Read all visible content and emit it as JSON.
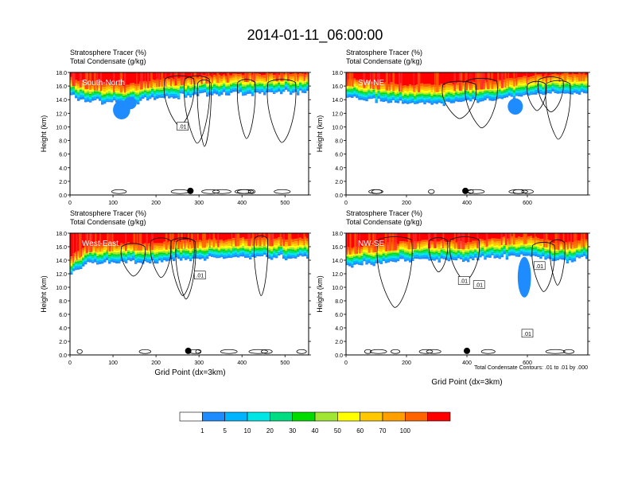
{
  "title": "2014-01-11_06:00:00",
  "panel_line1": "Stratosphere Tracer   (%)",
  "panel_line2": "Total Condensate   (g/kg)",
  "ylabel": "Height (km)",
  "xlabel": "Grid Point (dx=3km)",
  "contour_note": "Total Condensate Contours: .01 to .01 by .000",
  "contour_label": ".01",
  "y_ticks": [
    "0.0",
    "2.0",
    "4.0",
    "6.0",
    "8.0",
    "10.0",
    "12.0",
    "14.0",
    "16.0",
    "18.0"
  ],
  "colors": {
    "levels": [
      "#ffffff",
      "#1e8cff",
      "#00b4ff",
      "#00e6e6",
      "#00dc82",
      "#00dc00",
      "#a0e632",
      "#ffff00",
      "#ffc800",
      "#ffa000",
      "#ff6400",
      "#ff0000"
    ],
    "contour": "#000000",
    "label_text": "#ffffff"
  },
  "colorbar": {
    "labels": [
      "1",
      "5",
      "10",
      "20",
      "30",
      "40",
      "50",
      "60",
      "70",
      "100"
    ]
  },
  "chart_data": [
    {
      "type": "heatmap",
      "panel": "top-left",
      "label": "South-North",
      "xlim": [
        0,
        555
      ],
      "ylim": [
        0,
        18
      ],
      "x_ticks": [
        "0",
        "100",
        "200",
        "300",
        "400",
        "500"
      ],
      "marker_x": 280,
      "tracer_front_km": [
        [
          0,
          15.3
        ],
        [
          40,
          14.7
        ],
        [
          80,
          14.4
        ],
        [
          130,
          14.2
        ],
        [
          180,
          14.9
        ],
        [
          250,
          15.3
        ],
        [
          330,
          15.6
        ],
        [
          400,
          15.8
        ],
        [
          500,
          15.9
        ],
        [
          555,
          15.9
        ]
      ],
      "blue_patches": [
        [
          120,
          12.5,
          20,
          1.4
        ],
        [
          140,
          13.5,
          15,
          0.9
        ]
      ],
      "contour_labels": [
        [
          262,
          10.1
        ]
      ]
    },
    {
      "type": "heatmap",
      "panel": "top-right",
      "label": "SW-NE",
      "xlim": [
        0,
        800
      ],
      "ylim": [
        0,
        18
      ],
      "x_ticks": [
        "0",
        "200",
        "400",
        "600"
      ],
      "marker_x": 395,
      "tracer_front_km": [
        [
          0,
          15.2
        ],
        [
          100,
          14.7
        ],
        [
          200,
          14.3
        ],
        [
          300,
          14.3
        ],
        [
          400,
          14.6
        ],
        [
          500,
          14.8
        ],
        [
          600,
          15.5
        ],
        [
          700,
          15.8
        ],
        [
          800,
          15.9
        ]
      ],
      "blue_patches": [
        [
          560,
          13.0,
          25,
          1.2
        ]
      ],
      "contour_labels": []
    },
    {
      "type": "heatmap",
      "panel": "bottom-left",
      "label": "West-East",
      "xlim": [
        0,
        555
      ],
      "ylim": [
        0,
        18
      ],
      "x_ticks": [
        "0",
        "100",
        "200",
        "300",
        "400",
        "500"
      ],
      "marker_x": 275,
      "tracer_front_km": [
        [
          0,
          12.6
        ],
        [
          40,
          14.4
        ],
        [
          100,
          14.5
        ],
        [
          200,
          14.7
        ],
        [
          300,
          15.0
        ],
        [
          400,
          15.3
        ],
        [
          500,
          15.3
        ],
        [
          555,
          15.4
        ]
      ],
      "blue_patches": [],
      "contour_labels": [
        [
          302,
          11.8
        ]
      ]
    },
    {
      "type": "heatmap",
      "panel": "bottom-right",
      "label": "NW-SE",
      "xlim": [
        0,
        800
      ],
      "ylim": [
        0,
        18
      ],
      "x_ticks": [
        "0",
        "200",
        "400",
        "600"
      ],
      "marker_x": 400,
      "tracer_front_km": [
        [
          0,
          14.0
        ],
        [
          100,
          14.4
        ],
        [
          200,
          14.8
        ],
        [
          300,
          15.0
        ],
        [
          400,
          14.8
        ],
        [
          500,
          15.4
        ],
        [
          600,
          15.6
        ],
        [
          700,
          14.7
        ],
        [
          800,
          15.2
        ]
      ],
      "blue_patches": [
        [
          590,
          11.5,
          22,
          3.0
        ]
      ],
      "contour_labels": [
        [
          390,
          11.0
        ],
        [
          440,
          10.4
        ],
        [
          640,
          13.2
        ],
        [
          600,
          3.2
        ]
      ]
    }
  ]
}
